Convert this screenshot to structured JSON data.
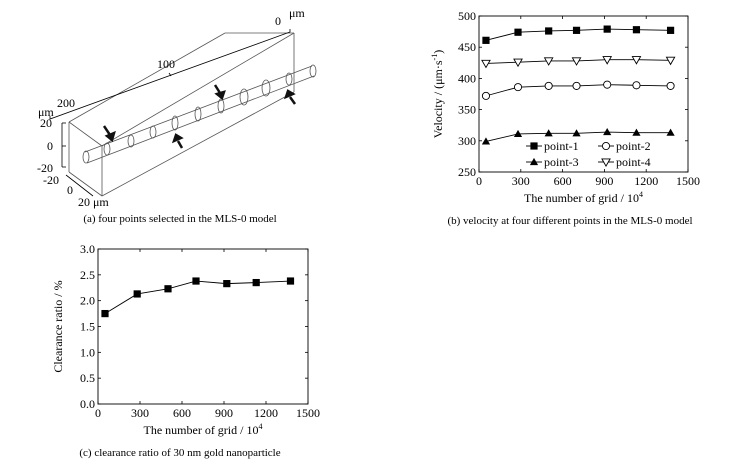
{
  "figure_a": {
    "caption": "(a) four points selected in the MLS-0 model",
    "labels": {
      "top_zero": "0",
      "top_unit": "μm",
      "length_mid": "100",
      "length_end": "200",
      "vertical_unit": "μm",
      "v_pos": "20",
      "v_zero": "0",
      "v_neg": "-20",
      "depth_neg": "-20",
      "depth_zero": "0",
      "depth_pos": "20 μm"
    }
  },
  "chart_data": [
    {
      "id": "b",
      "type": "line",
      "caption": "(b) velocity at four different points in the MLS-0 model",
      "xlabel": "The number of grid / 10",
      "xlabel_sup": "4",
      "ylabel": "Velocity / (μm·s",
      "ylabel_sup": "-1",
      "ylabel_end": ")",
      "xlim": [
        0,
        1500
      ],
      "ylim": [
        250,
        500
      ],
      "xticks": [
        0,
        300,
        600,
        900,
        1200,
        1500
      ],
      "yticks": [
        250,
        300,
        350,
        400,
        450,
        500
      ],
      "x": [
        50,
        280,
        500,
        700,
        920,
        1130,
        1375
      ],
      "legend_position": "bottom-right",
      "series": [
        {
          "name": "point-1",
          "marker": "filled-square",
          "values": [
            461,
            474,
            476,
            477,
            479,
            478,
            477
          ]
        },
        {
          "name": "point-2",
          "marker": "open-circle",
          "values": [
            372,
            386,
            388,
            388,
            390,
            389,
            388
          ]
        },
        {
          "name": "point-3",
          "marker": "filled-triangle-up",
          "values": [
            299,
            311,
            312,
            312,
            314,
            313,
            313
          ]
        },
        {
          "name": "point-4",
          "marker": "open-triangle-down",
          "values": [
            424,
            426,
            428,
            428,
            430,
            430,
            429
          ]
        }
      ]
    },
    {
      "id": "c",
      "type": "line",
      "caption": "(c) clearance ratio of 30 nm gold nanoparticle",
      "xlabel": "The number of grid / 10",
      "xlabel_sup": "4",
      "ylabel": "Clearance ratio / %",
      "xlim": [
        0,
        1500
      ],
      "ylim": [
        0,
        3.0
      ],
      "xticks": [
        0,
        300,
        600,
        900,
        1200,
        1500
      ],
      "yticks": [
        "0.0",
        "0.5",
        "1.0",
        "1.5",
        "2.0",
        "2.5",
        "3.0"
      ],
      "x": [
        50,
        280,
        500,
        700,
        920,
        1130,
        1375
      ],
      "series": [
        {
          "name": "clearance ratio",
          "marker": "filled-square",
          "values": [
            1.75,
            2.13,
            2.23,
            2.38,
            2.33,
            2.35,
            2.38
          ]
        }
      ]
    }
  ]
}
